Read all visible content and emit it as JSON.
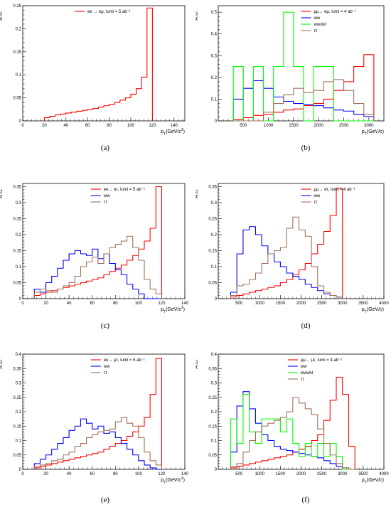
{
  "chart_data": [
    {
      "id": "a",
      "caption": "(a)",
      "type": "histogram",
      "xlabel": "p_T(GeV/c^2)",
      "ylabel": "A.U.",
      "xlim": [
        0,
        150
      ],
      "ylim": [
        0,
        0.25
      ],
      "xticks": [
        0,
        20,
        40,
        60,
        80,
        100,
        120,
        140
      ],
      "yticks": [
        0,
        0.05,
        0.1,
        0.15,
        0.2,
        0.25
      ],
      "ytick_labels": [
        "0",
        "0.05",
        "0.1",
        "0.15",
        "0.2",
        "0.25"
      ],
      "legend_placement": "top-center",
      "series": [
        {
          "name": "ee → eμ, lumi = 5 ab⁻¹",
          "color": "#ff0000",
          "edges": [
            20,
            25,
            30,
            35,
            40,
            45,
            50,
            55,
            60,
            65,
            70,
            75,
            80,
            85,
            90,
            95,
            100,
            105,
            110,
            115,
            120
          ],
          "values": [
            0.007,
            0.01,
            0.013,
            0.015,
            0.017,
            0.019,
            0.021,
            0.023,
            0.025,
            0.027,
            0.03,
            0.033,
            0.036,
            0.04,
            0.045,
            0.05,
            0.058,
            0.07,
            0.095,
            0.245
          ]
        }
      ]
    },
    {
      "id": "b",
      "caption": "(b)",
      "type": "histogram",
      "xlabel": "p_T(GeV/c)",
      "ylabel": "A.U.",
      "xlim": [
        0,
        3300
      ],
      "ylim": [
        0,
        0.53
      ],
      "xticks": [
        500,
        1000,
        1500,
        2000,
        2500,
        3000
      ],
      "yticks": [
        0,
        0.1,
        0.2,
        0.3,
        0.4,
        0.5
      ],
      "ytick_labels": [
        "0",
        "0.1",
        "0.2",
        "0.3",
        "0.4",
        "0.5"
      ],
      "legend_placement": "top-right",
      "series": [
        {
          "name": "μμ→ eμ, lumi = 4 ab⁻¹",
          "color": "#ff0000",
          "edges": [
            300,
            500,
            700,
            900,
            1100,
            1300,
            1500,
            1700,
            1900,
            2100,
            2300,
            2500,
            2700,
            2900,
            3100
          ],
          "values": [
            0.005,
            0.015,
            0.025,
            0.03,
            0.04,
            0.05,
            0.055,
            0.07,
            0.08,
            0.1,
            0.14,
            0.18,
            0.25,
            0.305
          ]
        },
        {
          "name": "ww",
          "color": "#0000ff",
          "edges": [
            300,
            500,
            700,
            900,
            1100,
            1300,
            1500,
            1700,
            1900,
            2100,
            2300,
            2500,
            2700,
            2900,
            3100
          ],
          "values": [
            0.1,
            0.15,
            0.185,
            0.15,
            0.11,
            0.09,
            0.08,
            0.075,
            0.07,
            0.06,
            0.05,
            0.045,
            0.03,
            0.02
          ]
        },
        {
          "name": "wwvlvl",
          "color": "#00ff00",
          "edges": [
            300,
            500,
            700,
            900,
            1100,
            1300,
            1500,
            1700,
            1900,
            2100,
            2300,
            2500,
            2700,
            2900,
            3100
          ],
          "values": [
            0.25,
            0,
            0.25,
            0,
            0.25,
            0.5,
            0.25,
            0,
            0.25,
            0.25,
            0,
            0,
            0,
            0
          ]
        },
        {
          "name": "ττ",
          "color": "#a0705a",
          "edges": [
            300,
            500,
            700,
            900,
            1100,
            1300,
            1500,
            1700,
            1900,
            2100,
            2300,
            2500,
            2700,
            2900,
            3100
          ],
          "values": [
            0,
            0,
            0,
            0.04,
            0.08,
            0.12,
            0.15,
            0.13,
            0.14,
            0.18,
            0.19,
            0.14,
            0.08,
            0.03
          ]
        }
      ]
    },
    {
      "id": "c",
      "caption": "(c)",
      "type": "histogram",
      "xlabel": "p_T(GeV/c^2)",
      "ylabel": "A.U.",
      "xlim": [
        0,
        140
      ],
      "ylim": [
        0,
        0.36
      ],
      "xticks": [
        0,
        20,
        40,
        60,
        80,
        100,
        120,
        140
      ],
      "yticks": [
        0,
        0.05,
        0.1,
        0.15,
        0.2,
        0.25,
        0.3,
        0.35
      ],
      "ytick_labels": [
        "0",
        "0.05",
        "0.1",
        "0.15",
        "0.2",
        "0.25",
        "0.3",
        "0.35"
      ],
      "legend_placement": "top-left",
      "series": [
        {
          "name": "ee→ eτ, lumi = 5 ab⁻¹",
          "color": "#ff0000",
          "edges": [
            10,
            15,
            20,
            25,
            30,
            35,
            40,
            45,
            50,
            55,
            60,
            65,
            70,
            75,
            80,
            85,
            90,
            95,
            100,
            105,
            110,
            115,
            120
          ],
          "values": [
            0.01,
            0.015,
            0.02,
            0.025,
            0.03,
            0.035,
            0.04,
            0.045,
            0.05,
            0.055,
            0.06,
            0.065,
            0.075,
            0.085,
            0.095,
            0.105,
            0.12,
            0.135,
            0.155,
            0.18,
            0.22,
            0.35
          ]
        },
        {
          "name": "ww",
          "color": "#0000ff",
          "edges": [
            10,
            15,
            20,
            25,
            30,
            35,
            40,
            45,
            50,
            55,
            60,
            65,
            70,
            75,
            80,
            85,
            90,
            95,
            100,
            105,
            110,
            115,
            120
          ],
          "values": [
            0.03,
            0.02,
            0.05,
            0.07,
            0.095,
            0.12,
            0.14,
            0.15,
            0.14,
            0.135,
            0.155,
            0.125,
            0.14,
            0.11,
            0.09,
            0.075,
            0.045,
            0.03,
            0.015,
            0,
            0,
            0
          ]
        },
        {
          "name": "ττ",
          "color": "#a0705a",
          "edges": [
            10,
            15,
            20,
            25,
            30,
            35,
            40,
            45,
            50,
            55,
            60,
            65,
            70,
            75,
            80,
            85,
            90,
            95,
            100,
            105,
            110,
            115,
            120
          ],
          "values": [
            0.02,
            0.03,
            0.025,
            0.02,
            0.03,
            0.04,
            0.05,
            0.07,
            0.1,
            0.115,
            0.13,
            0.11,
            0.14,
            0.16,
            0.17,
            0.18,
            0.195,
            0.16,
            0.12,
            0.06,
            0.03,
            0.015
          ]
        }
      ]
    },
    {
      "id": "d",
      "caption": "(d)",
      "type": "histogram",
      "xlabel": "p_T(GeV/c)",
      "ylabel": "A.U.",
      "xlim": [
        0,
        4000
      ],
      "ylim": [
        0,
        0.36
      ],
      "xticks": [
        500,
        1000,
        1500,
        2000,
        2500,
        3000,
        3500,
        4000
      ],
      "yticks": [
        0,
        0.05,
        0.1,
        0.15,
        0.2,
        0.25,
        0.3,
        0.35
      ],
      "ytick_labels": [
        "0",
        "0.05",
        "0.1",
        "0.15",
        "0.2",
        "0.25",
        "0.3",
        "0.35"
      ],
      "legend_placement": "top-right",
      "series": [
        {
          "name": "μμ→ eτ, lumi = 4 ab⁻¹",
          "color": "#ff0000",
          "edges": [
            300,
            450,
            600,
            750,
            900,
            1050,
            1200,
            1350,
            1500,
            1650,
            1800,
            1950,
            2100,
            2250,
            2400,
            2550,
            2700,
            2850,
            3000
          ],
          "values": [
            0.005,
            0.01,
            0.015,
            0.02,
            0.025,
            0.03,
            0.035,
            0.04,
            0.05,
            0.06,
            0.075,
            0.09,
            0.11,
            0.14,
            0.17,
            0.21,
            0.26,
            0.345
          ]
        },
        {
          "name": "ww",
          "color": "#0000ff",
          "edges": [
            300,
            450,
            600,
            750,
            900,
            1050,
            1200,
            1350,
            1500,
            1650,
            1800,
            1950,
            2100,
            2250,
            2400,
            2550,
            2700,
            2850,
            3000
          ],
          "values": [
            0.02,
            0.14,
            0.215,
            0.225,
            0.2,
            0.165,
            0.14,
            0.115,
            0.1,
            0.08,
            0.07,
            0.06,
            0.045,
            0.035,
            0.025,
            0.015,
            0.01,
            0.005
          ]
        },
        {
          "name": "ττ",
          "color": "#a0705a",
          "edges": [
            300,
            450,
            600,
            750,
            900,
            1050,
            1200,
            1350,
            1500,
            1650,
            1800,
            1950,
            2100,
            2250,
            2400,
            2550,
            2700,
            2850,
            3000
          ],
          "values": [
            0.01,
            0.04,
            0.045,
            0.06,
            0.08,
            0.11,
            0.14,
            0.15,
            0.16,
            0.22,
            0.255,
            0.215,
            0.195,
            0.1,
            0.04,
            0.02,
            0.01,
            0.005
          ]
        }
      ]
    },
    {
      "id": "e",
      "caption": "(e)",
      "type": "histogram",
      "xlabel": "p_T(GeV/c^2)",
      "ylabel": "A.U.",
      "xlim": [
        0,
        140
      ],
      "ylim": [
        0,
        0.4
      ],
      "xticks": [
        0,
        20,
        40,
        60,
        80,
        100,
        120,
        140
      ],
      "yticks": [
        0,
        0.05,
        0.1,
        0.15,
        0.2,
        0.25,
        0.3,
        0.35,
        0.4
      ],
      "ytick_labels": [
        "0",
        "0.05",
        "0.1",
        "0.15",
        "0.2",
        "0.25",
        "0.3",
        "0.35",
        "0.4"
      ],
      "legend_placement": "top-left",
      "series": [
        {
          "name": "ee→ μτ, lumi = 5 ab⁻¹",
          "color": "#ff0000",
          "edges": [
            10,
            15,
            20,
            25,
            30,
            35,
            40,
            45,
            50,
            55,
            60,
            65,
            70,
            75,
            80,
            85,
            90,
            95,
            100,
            105,
            110,
            115,
            120
          ],
          "values": [
            0.005,
            0.01,
            0.015,
            0.02,
            0.025,
            0.03,
            0.035,
            0.04,
            0.045,
            0.05,
            0.055,
            0.06,
            0.07,
            0.08,
            0.09,
            0.1,
            0.115,
            0.13,
            0.15,
            0.18,
            0.26,
            0.385
          ]
        },
        {
          "name": "ww",
          "color": "#0000ff",
          "edges": [
            10,
            15,
            20,
            25,
            30,
            35,
            40,
            45,
            50,
            55,
            60,
            65,
            70,
            75,
            80,
            85,
            90,
            95,
            100,
            105,
            110,
            115,
            120
          ],
          "values": [
            0.02,
            0.035,
            0.05,
            0.07,
            0.09,
            0.11,
            0.135,
            0.15,
            0.175,
            0.16,
            0.14,
            0.15,
            0.125,
            0.13,
            0.11,
            0.09,
            0.07,
            0.05,
            0.03,
            0.015,
            0.005,
            0
          ]
        },
        {
          "name": "ττ",
          "color": "#a0705a",
          "edges": [
            10,
            15,
            20,
            25,
            30,
            35,
            40,
            45,
            50,
            55,
            60,
            65,
            70,
            75,
            80,
            85,
            90,
            95,
            100,
            105,
            110,
            115,
            120
          ],
          "values": [
            0.01,
            0.015,
            0.02,
            0.03,
            0.035,
            0.05,
            0.06,
            0.08,
            0.09,
            0.11,
            0.12,
            0.13,
            0.135,
            0.14,
            0.165,
            0.18,
            0.16,
            0.15,
            0.11,
            0.06,
            0.03,
            0.015
          ]
        }
      ]
    },
    {
      "id": "f",
      "caption": "(f)",
      "type": "histogram",
      "xlabel": "p_T(GeV/c)",
      "ylabel": "A.U.",
      "xlim": [
        0,
        4000
      ],
      "ylim": [
        0,
        0.4
      ],
      "xticks": [
        500,
        1000,
        1500,
        2000,
        2500,
        3000,
        3500,
        4000
      ],
      "yticks": [
        0,
        0.05,
        0.1,
        0.15,
        0.2,
        0.25,
        0.3,
        0.35,
        0.4
      ],
      "ytick_labels": [
        "0",
        "0.05",
        "0.1",
        "0.15",
        "0.2",
        "0.25",
        "0.3",
        "0.35",
        "0.4"
      ],
      "legend_placement": "top-left",
      "series": [
        {
          "name": "μμ→ μτ, lumi = 4 ab⁻¹",
          "color": "#ff0000",
          "edges": [
            300,
            450,
            600,
            750,
            900,
            1050,
            1200,
            1350,
            1500,
            1650,
            1800,
            1950,
            2100,
            2250,
            2400,
            2550,
            2700,
            2850,
            3000,
            3150,
            3300
          ],
          "values": [
            0.005,
            0.01,
            0.015,
            0.02,
            0.025,
            0.03,
            0.035,
            0.04,
            0.045,
            0.05,
            0.06,
            0.07,
            0.08,
            0.1,
            0.12,
            0.17,
            0.24,
            0.32,
            0.26,
            0.08
          ]
        },
        {
          "name": "ww",
          "color": "#0000ff",
          "edges": [
            300,
            450,
            600,
            750,
            900,
            1050,
            1200,
            1350,
            1500,
            1650,
            1800,
            1950,
            2100,
            2250,
            2400,
            2550,
            2700,
            2850,
            3000,
            3150,
            3300
          ],
          "values": [
            0.06,
            0.22,
            0.27,
            0.21,
            0.16,
            0.12,
            0.1,
            0.08,
            0.07,
            0.065,
            0.06,
            0.055,
            0.05,
            0.045,
            0.04,
            0.03,
            0.02,
            0.01,
            0.005,
            0
          ]
        },
        {
          "name": "wwvlvl",
          "color": "#00ff00",
          "edges": [
            300,
            450,
            600,
            750,
            900,
            1050,
            1200,
            1350,
            1500,
            1650,
            1800,
            1950,
            2100,
            2250,
            2400,
            2550,
            2700,
            2850,
            3000,
            3150,
            3300
          ],
          "values": [
            0.175,
            0.09,
            0.26,
            0.13,
            0.09,
            0.175,
            0.175,
            0.175,
            0.13,
            0.175,
            0.09,
            0.045,
            0.09,
            0.045,
            0.09,
            0.045,
            0.09,
            0.045,
            0,
            0
          ]
        },
        {
          "name": "ττ",
          "color": "#a0705a",
          "edges": [
            300,
            450,
            600,
            750,
            900,
            1050,
            1200,
            1350,
            1500,
            1650,
            1800,
            1950,
            2100,
            2250,
            2400,
            2550,
            2700,
            2850,
            3000,
            3150,
            3300
          ],
          "values": [
            0.01,
            0.02,
            0.06,
            0.1,
            0.13,
            0.15,
            0.16,
            0.17,
            0.18,
            0.2,
            0.25,
            0.23,
            0.21,
            0.19,
            0.14,
            0.09,
            0.05,
            0.02,
            0.005,
            0
          ]
        }
      ]
    }
  ]
}
